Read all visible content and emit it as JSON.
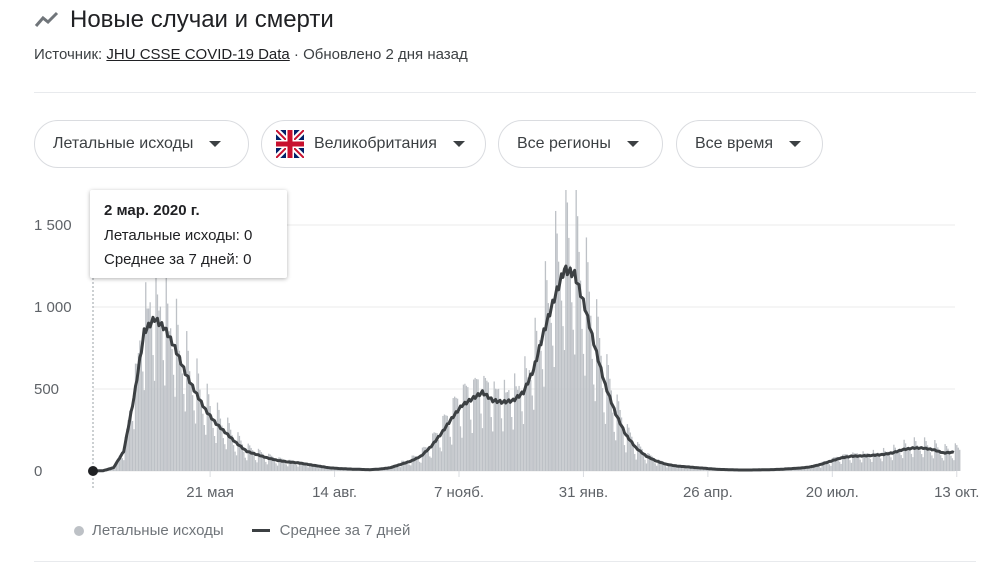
{
  "header": {
    "title": "Новые случаи и смерти",
    "source_label": "Источник:",
    "source_link": "JHU CSSE COVID-19 Data",
    "updated": " · Обновлено 2 дня назад"
  },
  "filters": [
    {
      "label": "Летальные исходы"
    },
    {
      "label": "Великобритания"
    },
    {
      "label": "Все регионы"
    },
    {
      "label": "Все время"
    }
  ],
  "tooltip": {
    "date": "2 мар. 2020 г.",
    "line1": "Летальные исходы: 0",
    "line2": "Среднее за 7 дней: 0"
  },
  "colors": {
    "bars": "#bdc1c6",
    "line": "#3c4043",
    "grid": "#ebebeb"
  },
  "chart_data": {
    "type": "bar",
    "title": "Новые случаи и смерти",
    "start_date": "2020-03-02",
    "step_days": 7,
    "ylim": [
      0,
      1700
    ],
    "yticks": [
      0,
      500,
      1000,
      1500
    ],
    "ytick_labels": [
      "0",
      "500",
      "1 000",
      "1 500"
    ],
    "xtick_days": [
      80,
      165,
      250,
      335,
      420,
      505,
      590
    ],
    "xtick_labels": [
      "21 мая",
      "14 авг.",
      "7 нояб.",
      "31 янв.",
      "26 апр.",
      "20 июл.",
      "13 окт."
    ],
    "legend": [
      "Летальные исходы",
      "Среднее за 7 дней"
    ],
    "legend_position": "bottom",
    "series": [
      {
        "name": "Среднее за 7 дней",
        "values": [
          0,
          2,
          20,
          120,
          450,
          850,
          930,
          870,
          750,
          600,
          480,
          370,
          290,
          230,
          170,
          120,
          100,
          80,
          65,
          55,
          50,
          40,
          30,
          20,
          15,
          12,
          10,
          8,
          12,
          20,
          40,
          60,
          90,
          150,
          230,
          320,
          400,
          440,
          480,
          430,
          420,
          430,
          480,
          620,
          850,
          1050,
          1230,
          1200,
          1000,
          750,
          520,
          350,
          220,
          140,
          90,
          60,
          40,
          30,
          25,
          20,
          15,
          10,
          8,
          6,
          6,
          7,
          8,
          10,
          14,
          18,
          25,
          40,
          60,
          80,
          90,
          92,
          95,
          100,
          110,
          130,
          140,
          140,
          130,
          110,
          115
        ]
      }
    ]
  }
}
